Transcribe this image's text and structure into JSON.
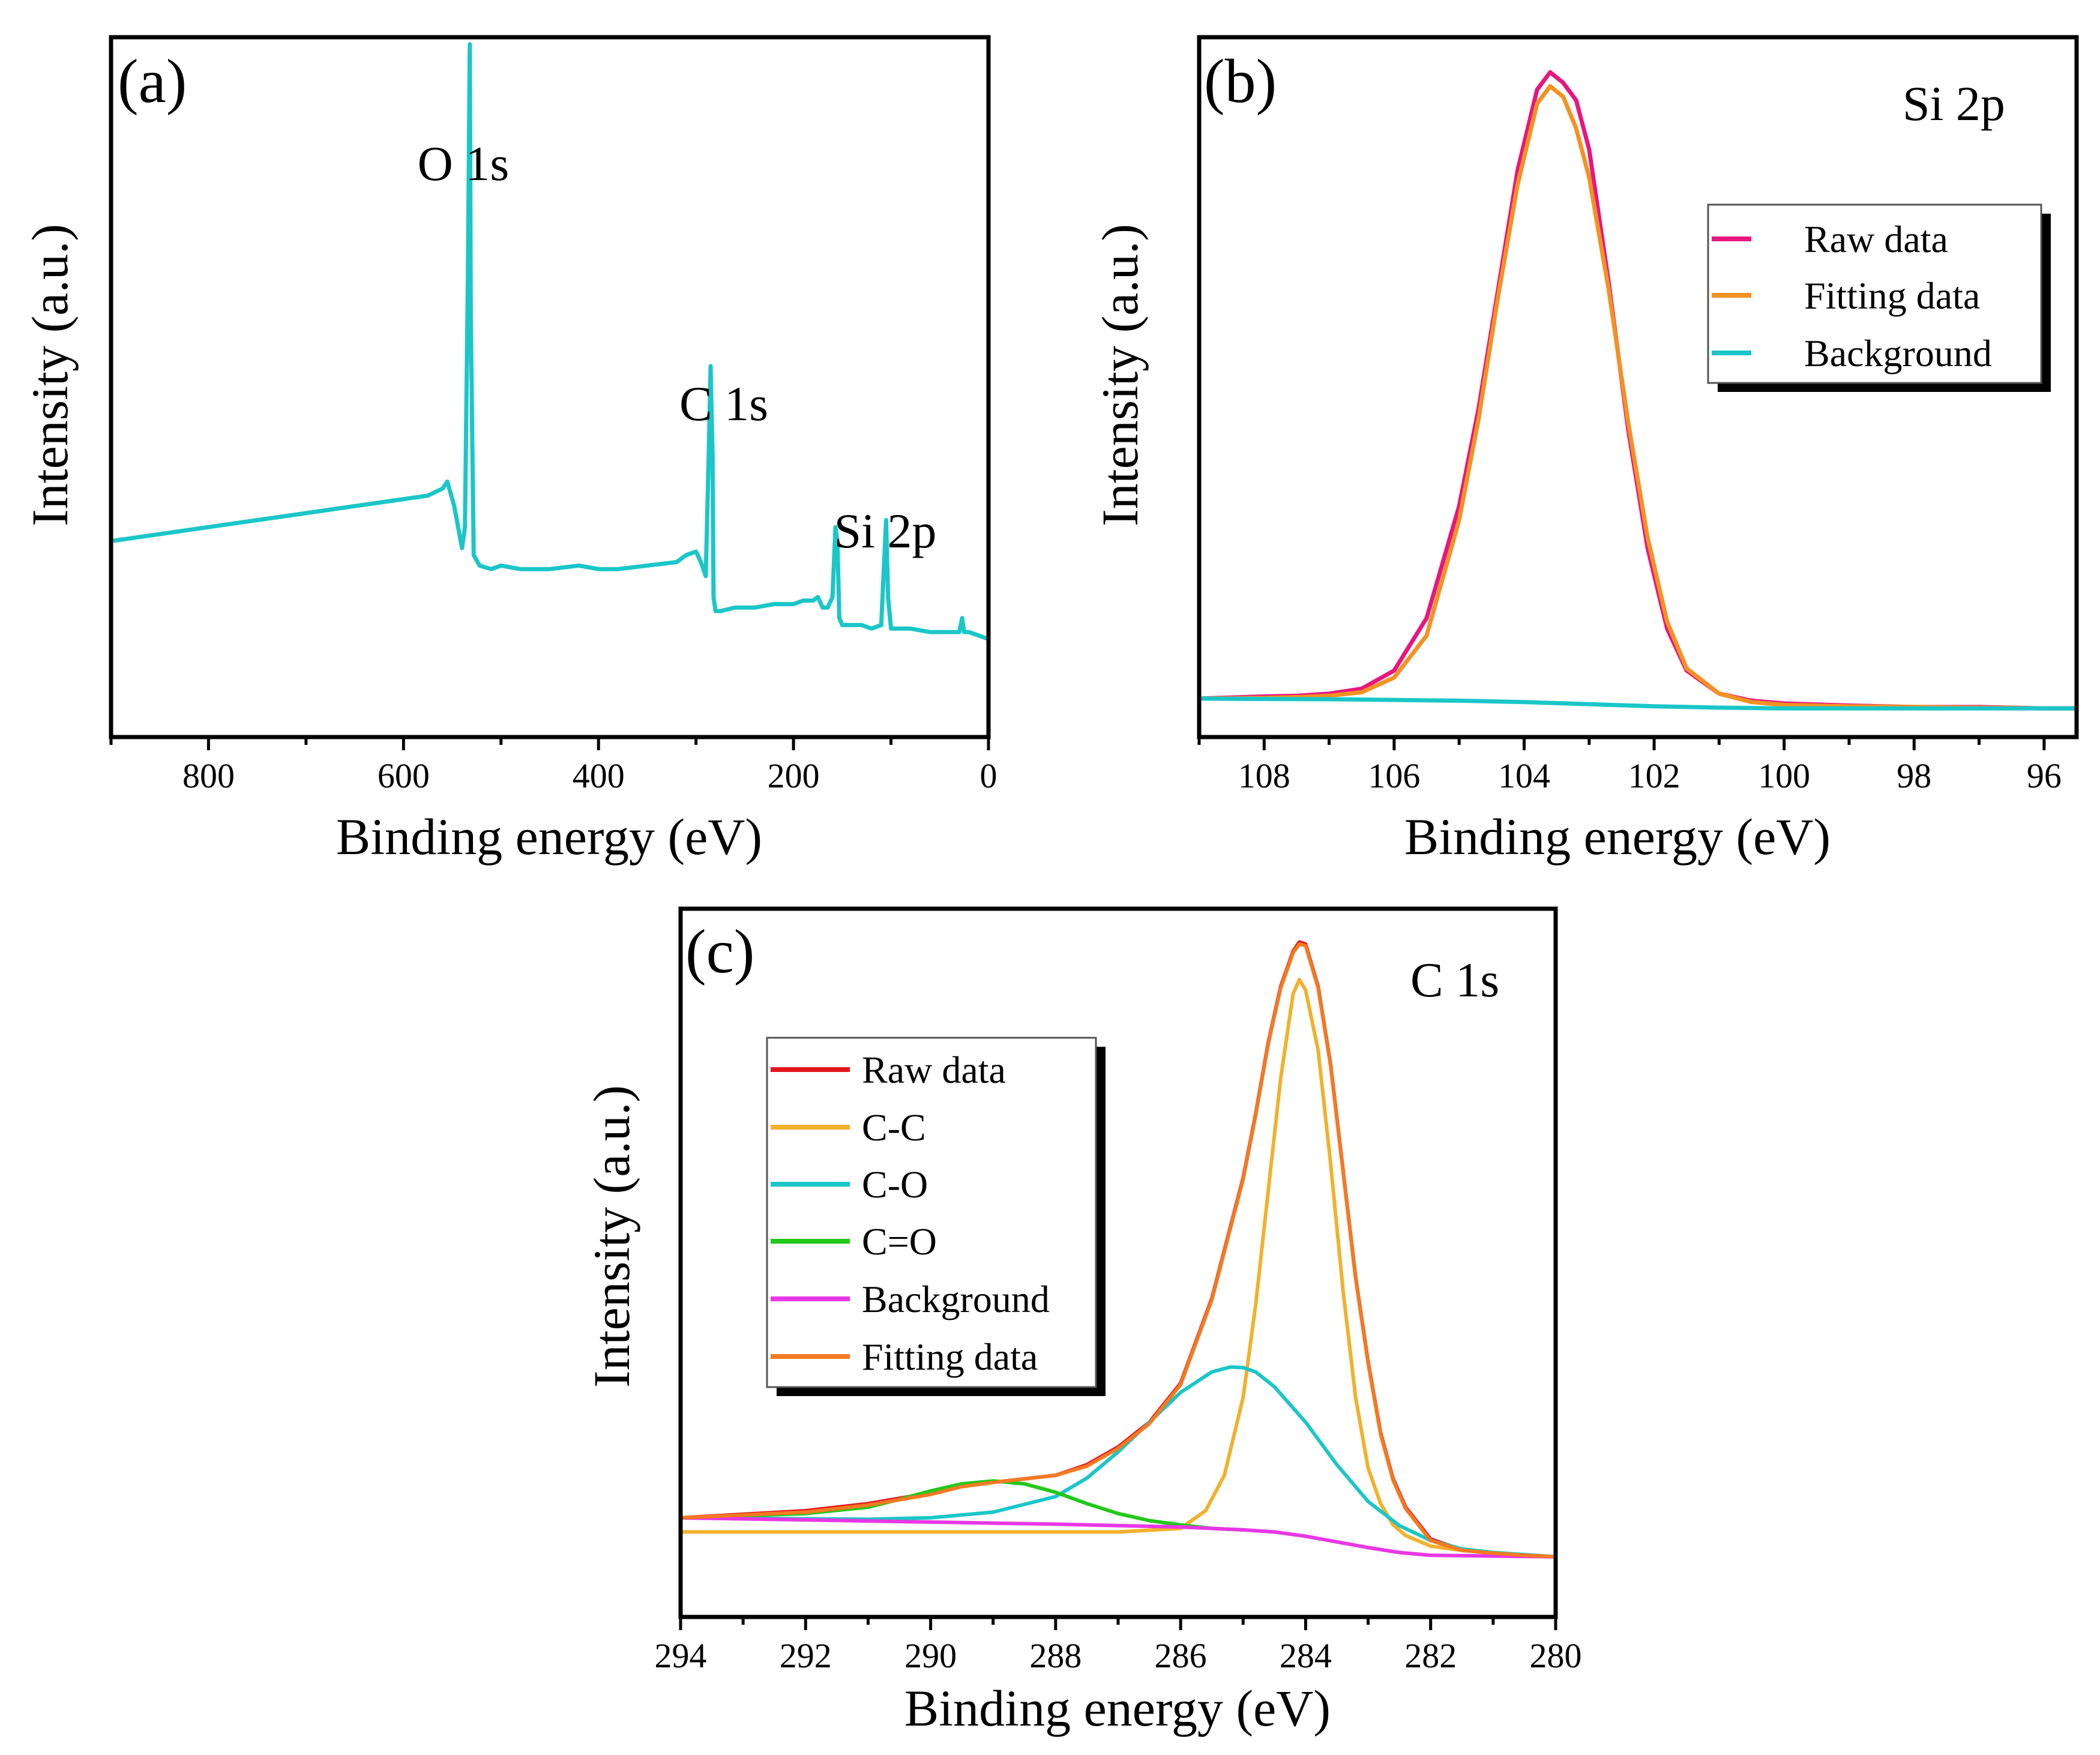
{
  "chart_data": [
    {
      "panel": "(a)",
      "type": "line",
      "xlabel": "Binding energy (eV)",
      "ylabel": "Intensity (a.u.)",
      "xlim": [
        900,
        0
      ],
      "ylim": [
        0,
        100
      ],
      "x_reversed": true,
      "x_ticks": [
        800,
        600,
        400,
        200,
        0
      ],
      "y_ticks_shown": false,
      "series": [
        {
          "color": "#1ac6c8",
          "x": [
            900,
            850,
            800,
            750,
            700,
            650,
            600,
            575,
            560,
            555,
            548,
            540,
            537,
            534,
            532,
            531,
            528,
            522,
            510,
            500,
            480,
            450,
            420,
            400,
            380,
            350,
            320,
            310,
            300,
            295,
            290,
            287,
            285,
            283,
            282,
            280,
            275,
            260,
            240,
            220,
            200,
            190,
            180,
            175,
            170,
            165,
            160,
            157,
            155,
            153,
            150,
            140,
            130,
            120,
            110,
            107,
            105,
            103,
            100,
            90,
            80,
            60,
            40,
            30,
            27,
            25,
            20,
            10,
            0
          ],
          "y": [
            28,
            29,
            30,
            31,
            32,
            33,
            34,
            34.5,
            35.5,
            36.5,
            33,
            27,
            30,
            65,
            99,
            60,
            26,
            24.5,
            24,
            24.5,
            24,
            24,
            24.5,
            24,
            24,
            24.5,
            25,
            26,
            26.5,
            25,
            23,
            40,
            53,
            40,
            20,
            18,
            18,
            18.5,
            18.5,
            19,
            19,
            19.5,
            19.5,
            20,
            18.5,
            18.5,
            20,
            30,
            28,
            17,
            16,
            16,
            16,
            15.5,
            16,
            25,
            31,
            20,
            15.5,
            15.5,
            15.5,
            15,
            15,
            15,
            17,
            15,
            15,
            14.5,
            14
          ]
        }
      ],
      "annotations": [
        {
          "text": "O 1s",
          "x": 532,
          "y": 99
        },
        {
          "text": "C 1s",
          "x": 285,
          "y": 53
        },
        {
          "text": "Si 2p",
          "x": 103,
          "y": 31
        }
      ]
    },
    {
      "panel": "(b)",
      "type": "line",
      "title": "Si 2p",
      "xlabel": "Binding energy (eV)",
      "ylabel": "Intensity (a.u.)",
      "xlim": [
        109,
        95.5
      ],
      "ylim": [
        0,
        100
      ],
      "x_reversed": true,
      "x_ticks": [
        108,
        106,
        104,
        102,
        100,
        98,
        96
      ],
      "y_ticks_shown": false,
      "legend_position": "top-right",
      "series": [
        {
          "name": "Raw data",
          "color": "#e8167f",
          "x": [
            109,
            108,
            107.5,
            107,
            106.5,
            106,
            105.5,
            105,
            104.7,
            104.4,
            104.1,
            103.8,
            103.6,
            103.4,
            103.2,
            103,
            102.7,
            102.4,
            102.1,
            101.8,
            101.5,
            101,
            100.5,
            100,
            99,
            98,
            97,
            96,
            95.5
          ],
          "y": [
            5.5,
            5.8,
            5.9,
            6.2,
            6.9,
            9.5,
            17,
            33,
            47,
            64,
            81,
            92.5,
            95,
            93.5,
            91,
            84,
            65,
            44,
            27,
            15.5,
            9.5,
            6.2,
            5.2,
            4.8,
            4.5,
            4.3,
            4.3,
            4.1,
            4.1
          ]
        },
        {
          "name": "Fitting data",
          "color": "#f39222",
          "x": [
            109,
            108,
            107.5,
            107,
            106.5,
            106,
            105.5,
            105,
            104.7,
            104.4,
            104.1,
            103.8,
            103.6,
            103.4,
            103.2,
            103,
            102.7,
            102.4,
            102.1,
            101.8,
            101.5,
            101,
            100.5,
            100,
            99,
            98,
            97,
            96,
            95.5
          ],
          "y": [
            5.5,
            5.6,
            5.7,
            5.9,
            6.4,
            8.5,
            14.5,
            31,
            45.5,
            63,
            79,
            90.5,
            93,
            91.5,
            87,
            80,
            64,
            45,
            28.5,
            16.5,
            9.8,
            6.2,
            5,
            4.6,
            4.4,
            4.3,
            4.2,
            4.1,
            4.1
          ]
        },
        {
          "name": "Background",
          "color": "#1ac6c8",
          "x": [
            109,
            107,
            105,
            104,
            103,
            102,
            101,
            100,
            99,
            98,
            97,
            96,
            95.5
          ],
          "y": [
            5.5,
            5.4,
            5.2,
            5.0,
            4.7,
            4.4,
            4.2,
            4.1,
            4.1,
            4.1,
            4.1,
            4.1,
            4.1
          ]
        }
      ]
    },
    {
      "panel": "(c)",
      "type": "line",
      "title": "C 1s",
      "xlabel": "Binding energy (eV)",
      "ylabel": "Intensity (a.u.)",
      "xlim": [
        294,
        280
      ],
      "ylim": [
        0,
        100
      ],
      "x_reversed": true,
      "x_ticks": [
        294,
        292,
        290,
        288,
        286,
        284,
        282,
        280
      ],
      "y_ticks_shown": false,
      "legend_position": "top-left",
      "series": [
        {
          "name": "Raw data",
          "color": "#e3161c",
          "x": [
            294,
            292,
            291,
            290,
            289.5,
            289,
            288.5,
            288,
            287.5,
            287,
            286.5,
            286,
            285.5,
            285,
            284.8,
            284.6,
            284.4,
            284.2,
            284.1,
            284,
            283.8,
            283.6,
            283.4,
            283.2,
            283,
            282.8,
            282.6,
            282.4,
            282,
            281.5,
            281,
            280.5,
            280
          ],
          "y": [
            14,
            15,
            16,
            17.5,
            18.5,
            19,
            19.5,
            20,
            21.5,
            24,
            27.5,
            33,
            45,
            62,
            71,
            81,
            89,
            94,
            95.3,
            95,
            89,
            78,
            63,
            48,
            36,
            26,
            19.5,
            15.5,
            11,
            9.5,
            9,
            8.7,
            8.5
          ]
        },
        {
          "name": "C-C",
          "color": "#f1b12b",
          "x": [
            294,
            287,
            286,
            285.6,
            285.3,
            285,
            284.8,
            284.6,
            284.4,
            284.2,
            284.1,
            284,
            283.8,
            283.6,
            283.4,
            283.2,
            283,
            282.8,
            282.6,
            282.4,
            282,
            281.5,
            281,
            280
          ],
          "y": [
            12,
            12,
            12.5,
            15,
            20,
            31,
            44,
            60,
            76,
            88,
            90,
            88.5,
            80,
            64,
            46,
            31,
            21,
            16,
            13,
            11.5,
            10,
            9.4,
            9,
            8.5
          ]
        },
        {
          "name": "C-O",
          "color": "#1ac6c8",
          "x": [
            294,
            291,
            290,
            289,
            288,
            287.5,
            287,
            286.5,
            286,
            285.5,
            285.2,
            285,
            284.8,
            284.5,
            284,
            283.5,
            283,
            282.5,
            282,
            281.5,
            281,
            280
          ],
          "y": [
            14,
            13.8,
            14,
            14.8,
            17,
            19.6,
            23.3,
            27.5,
            31.7,
            34.6,
            35.3,
            35.2,
            34.6,
            32.5,
            27.5,
            21.5,
            16.3,
            12.9,
            10.8,
            9.6,
            9.1,
            8.5
          ]
        },
        {
          "name": "C=O",
          "color": "#23c81a",
          "x": [
            294,
            292,
            291,
            290.5,
            290,
            289.5,
            289,
            288.5,
            288,
            287.5,
            287,
            286.5,
            286,
            285.5,
            285
          ],
          "y": [
            14,
            14.6,
            15.5,
            16.6,
            17.8,
            18.8,
            19.2,
            18.8,
            17.6,
            16,
            14.6,
            13.6,
            13,
            12.5,
            12.3
          ]
        },
        {
          "name": "Background",
          "color": "#e837e4",
          "x": [
            294,
            292,
            290,
            288,
            286,
            285,
            284.5,
            284,
            283.5,
            283,
            282.5,
            282,
            281,
            280
          ],
          "y": [
            14,
            13.7,
            13.4,
            13.1,
            12.7,
            12.3,
            12,
            11.4,
            10.6,
            9.8,
            9.1,
            8.7,
            8.6,
            8.5
          ]
        },
        {
          "name": "Fitting data",
          "color": "#f37a22",
          "x": [
            294,
            292,
            291,
            290,
            289.5,
            289,
            288.5,
            288,
            287.5,
            287,
            286.5,
            286,
            285.5,
            285,
            284.8,
            284.6,
            284.4,
            284.2,
            284.1,
            284,
            283.8,
            283.6,
            283.4,
            283.2,
            283,
            282.8,
            282.6,
            282.4,
            282,
            281.5,
            281,
            280.5,
            280
          ],
          "y": [
            14,
            14.8,
            15.8,
            17.3,
            18.4,
            19,
            19.5,
            20,
            21.3,
            23.8,
            27.3,
            32.8,
            44.8,
            61.8,
            70.8,
            80.8,
            88.8,
            93.8,
            95,
            94.8,
            88.8,
            77.8,
            62.8,
            47.8,
            35.8,
            25.8,
            19.3,
            15.3,
            10.8,
            9.4,
            9,
            8.7,
            8.5
          ]
        }
      ]
    }
  ]
}
